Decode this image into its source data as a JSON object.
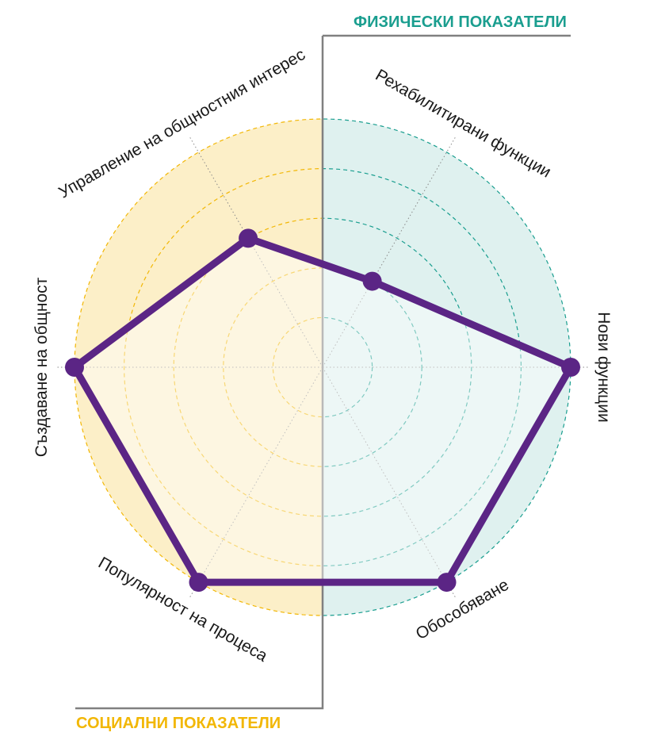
{
  "headers": {
    "physical": "ФИЗИЧЕСКИ ПОКАЗАТЕЛИ",
    "social": "СОЦИАЛНИ ПОКАЗАТЕЛИ"
  },
  "colors": {
    "physical": "#1a9e8f",
    "social": "#f2b705",
    "series": "#5b2585",
    "divider": "#808080"
  },
  "chart_data": {
    "type": "radar",
    "title": "",
    "max": 5,
    "rings": 5,
    "axes": [
      "Рехабилитирани функции",
      "Нови функции",
      "Обособяване",
      "Популярност на процеса",
      "Създаване на общност",
      "Управление на общностния интерес"
    ],
    "groups": [
      {
        "name": "ФИЗИЧЕСКИ ПОКАЗАТЕЛИ",
        "axes": [
          "Рехабилитирани функции",
          "Нови функции",
          "Обособяване"
        ]
      },
      {
        "name": "СОЦИАЛНИ ПОКАЗАТЕЛИ",
        "axes": [
          "Популярност на процеса",
          "Създаване на общност",
          "Управление на общностния интерес"
        ]
      }
    ],
    "series": [
      {
        "values": [
          2,
          5,
          5,
          5,
          5,
          3
        ]
      }
    ]
  }
}
